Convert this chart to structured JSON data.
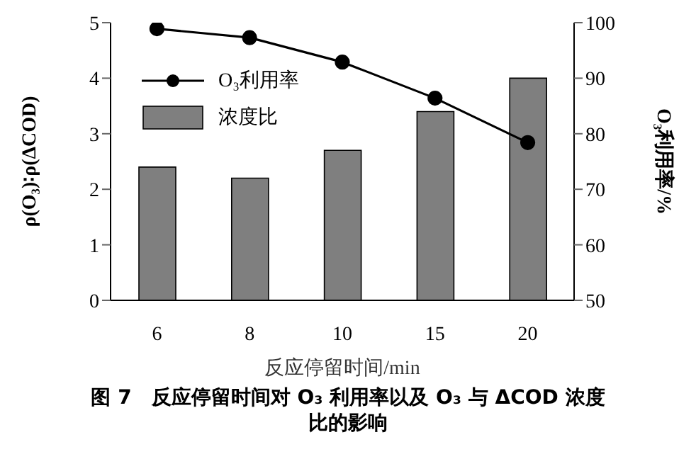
{
  "chart_data": {
    "type": "bar",
    "title": "图 7　反应停留时间对 O₃ 利用率以及 O₃ 与 ΔCOD 浓度比的影响",
    "xlabel": "反应停留时间/min",
    "ylabel": "ρ(O₃)∶ρ(ΔCOD)",
    "y2label": "O₃利用率/%",
    "categories": [
      "6",
      "8",
      "10",
      "15",
      "20"
    ],
    "series": [
      {
        "name": "O₃利用率",
        "type": "line",
        "axis": "y2",
        "color": "#000000",
        "values": [
          98.9,
          97.3,
          92.9,
          86.4,
          78.4
        ]
      },
      {
        "name": "浓度比",
        "color": "#7f7f7f",
        "values": [
          2.4,
          2.2,
          2.7,
          3.4,
          4.0
        ]
      }
    ],
    "ylim": [
      0,
      5
    ],
    "yticks": [
      0,
      1,
      2,
      3,
      4,
      5
    ],
    "y2lim": [
      50,
      100
    ],
    "y2ticks": [
      50,
      60,
      70,
      80,
      90,
      100
    ],
    "grid": false,
    "legend": "top left",
    "marker": "circle"
  }
}
